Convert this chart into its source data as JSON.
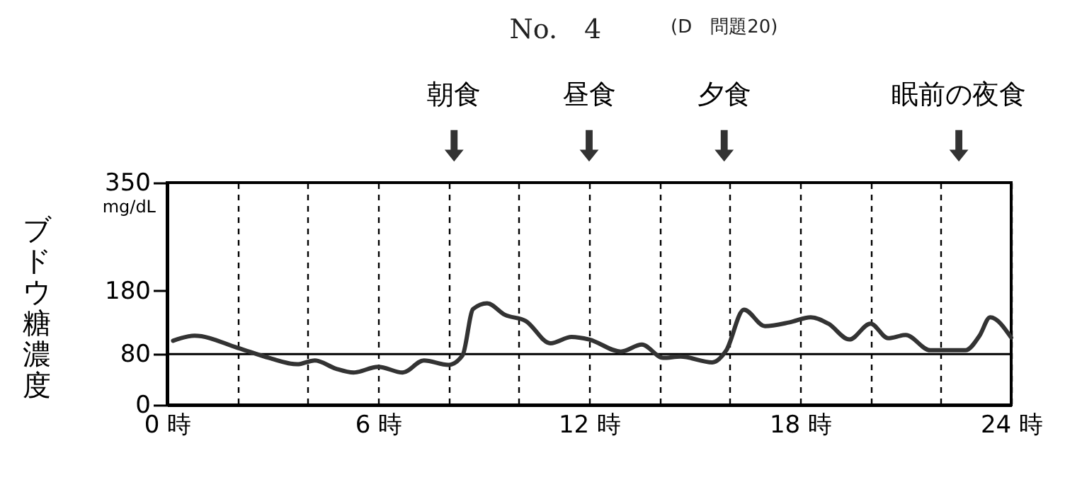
{
  "chart_data": {
    "type": "line",
    "title": "No.　4",
    "subtitle": "(D　問題20)",
    "ylabel": "ブドウ糖濃度",
    "x": [
      0.17,
      0.78,
      2,
      2.9,
      3.7,
      4.2,
      4.8,
      5.3,
      6.0,
      6.7,
      7.3,
      8.0,
      8.4,
      8.7,
      9.1,
      9.6,
      10.2,
      10.9,
      11.5,
      12,
      12.9,
      13.5,
      14.1,
      14.6,
      15.5,
      15.9,
      16.4,
      17.0,
      17.7,
      18.3,
      18.8,
      19.4,
      20.0,
      20.5,
      21.0,
      21.7,
      22.7,
      23.1,
      23.4,
      24
    ],
    "series": [
      {
        "color": "#333333",
        "values": [
          101,
          109,
          90,
          74,
          64,
          70,
          57,
          51,
          60,
          51,
          70,
          63,
          78,
          151,
          160,
          142,
          132,
          97,
          107,
          103,
          84,
          95,
          74,
          76,
          67,
          86,
          150,
          124,
          130,
          138,
          128,
          103,
          128,
          105,
          110,
          86,
          86,
          109,
          138,
          106
        ]
      }
    ],
    "xlim": [
      0,
      24
    ],
    "xticks": [
      {
        "value": 0,
        "label": "0 時"
      },
      {
        "value": 2,
        "label": null
      },
      {
        "value": 4,
        "label": null
      },
      {
        "value": 6,
        "label": "6 時"
      },
      {
        "value": 8,
        "label": null
      },
      {
        "value": 10,
        "label": null
      },
      {
        "value": 12,
        "label": "12 時"
      },
      {
        "value": 14,
        "label": null
      },
      {
        "value": 16,
        "label": null
      },
      {
        "value": 18,
        "label": "18 時"
      },
      {
        "value": 20,
        "label": null
      },
      {
        "value": 22,
        "label": null
      },
      {
        "value": 24,
        "label": "24 時"
      }
    ],
    "ylim": [
      0,
      350
    ],
    "yticks": [
      0,
      80,
      180,
      350
    ],
    "ref_lines": [
      {
        "axis": "y",
        "value": 80,
        "label": null
      }
    ],
    "grid": "x",
    "marker": "none",
    "line_style": "solid",
    "annotations": [
      "mg/dL",
      "朝食",
      "昼食",
      "夕食",
      "眠前の夜食"
    ]
  }
}
